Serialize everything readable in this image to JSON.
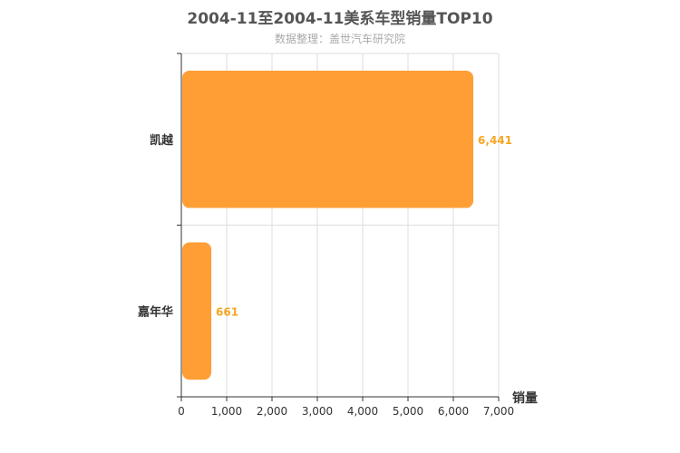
{
  "chart_data": {
    "type": "bar",
    "orientation": "horizontal",
    "title": "2004-11至2004-11美系车型销量TOP10",
    "subtitle": "数据整理：盖世汽车研究院",
    "categories": [
      "凯越",
      "嘉年华"
    ],
    "values": [
      6441,
      661
    ],
    "value_labels": [
      "6,441",
      "661"
    ],
    "xlabel": "销量",
    "ylabel": "",
    "xlim": [
      0,
      7000
    ],
    "x_ticks": [
      0,
      1000,
      2000,
      3000,
      4000,
      5000,
      6000,
      7000
    ],
    "x_tick_labels": [
      "0",
      "1,000",
      "2,000",
      "3,000",
      "4,000",
      "5,000",
      "6,000",
      "7,000"
    ],
    "grid": true,
    "bar_color": "#ff9e35",
    "label_color": "#f5a623"
  }
}
